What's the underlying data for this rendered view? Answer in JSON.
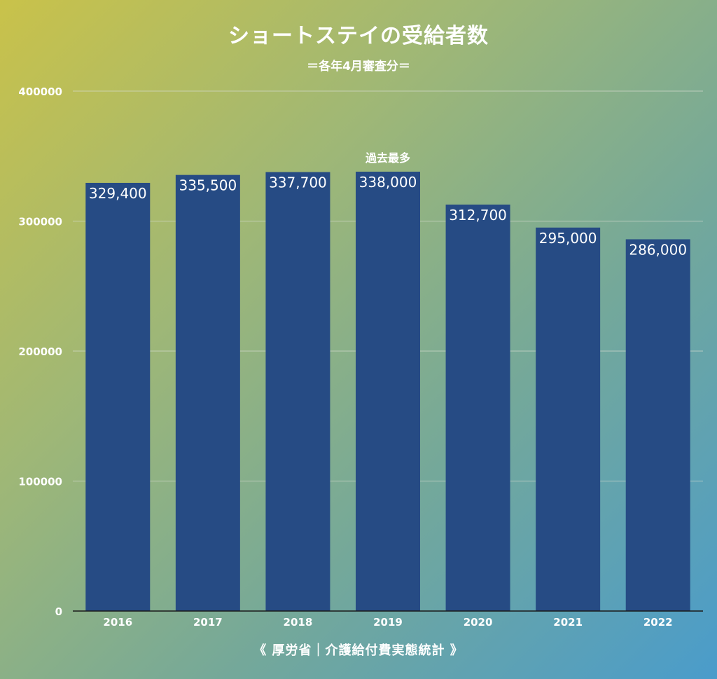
{
  "chart": {
    "title": "ショートステイの受給者数",
    "subtitle": "＝各年4月審査分＝",
    "source": "《 厚労省｜介護給付費実態統計 》"
  },
  "chart_data": {
    "type": "bar",
    "title": "ショートステイの受給者数",
    "subtitle": "＝各年4月審査分＝",
    "categories": [
      "2016",
      "2017",
      "2018",
      "2019",
      "2020",
      "2021",
      "2022"
    ],
    "values": [
      329400,
      335500,
      337700,
      338000,
      312700,
      295000,
      286000
    ],
    "value_labels": [
      "329,400",
      "335,500",
      "337,700",
      "338,000",
      "312,700",
      "295,000",
      "286,000"
    ],
    "y_ticks": [
      "0",
      "100000",
      "200000",
      "300000",
      "400000"
    ],
    "ylim": [
      0,
      400000
    ],
    "grid": true,
    "annotations": [
      {
        "category": "2019",
        "text": "過去最多"
      }
    ],
    "colors": {
      "bar": "#264b84",
      "text": "#ffffff",
      "grid": "#d6dcd0",
      "axis": "#1a1a1a"
    }
  }
}
